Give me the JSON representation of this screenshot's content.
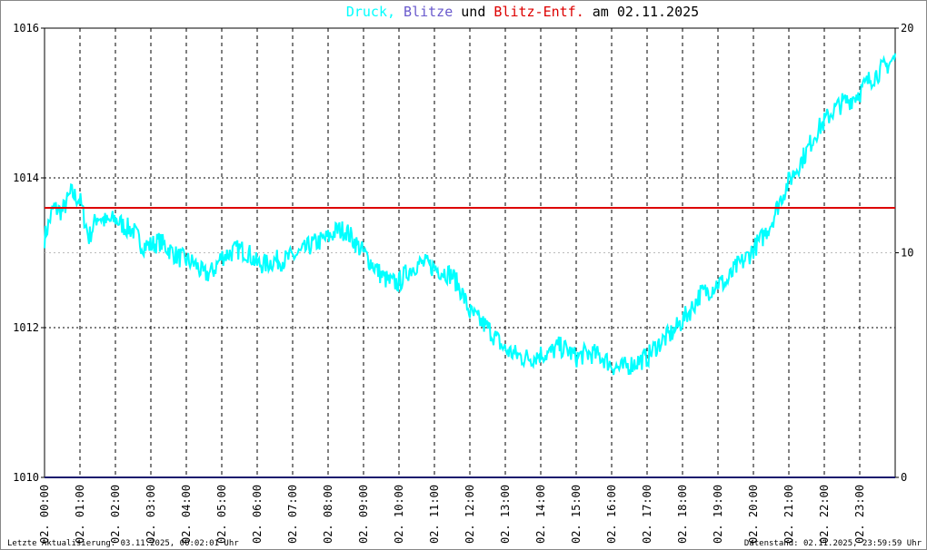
{
  "title": {
    "part1": "Druck,",
    "part2": "Blitze",
    "part3": "und",
    "part4": "Blitz-Entf.",
    "part5": "am 02.11.2025",
    "color1": "#00ffff",
    "color2": "#6a5acd",
    "color3": "#000000",
    "color4": "#dd0000",
    "color5": "#000000"
  },
  "footer": {
    "left": "Letzte Aktualisierung: 03.11.2025, 00:02:01 Uhr",
    "right": "Datenstand: 02.11.2025, 23:59:59 Uhr"
  },
  "chart_data": {
    "type": "line",
    "x_range_hours": [
      0,
      24
    ],
    "x_tick_labels": [
      "02. 00:00",
      "02. 01:00",
      "02. 02:00",
      "02. 03:00",
      "02. 04:00",
      "02. 05:00",
      "02. 06:00",
      "02. 07:00",
      "02. 08:00",
      "02. 09:00",
      "02. 10:00",
      "02. 11:00",
      "02. 12:00",
      "02. 13:00",
      "02. 14:00",
      "02. 15:00",
      "02. 16:00",
      "02. 17:00",
      "02. 18:00",
      "02. 19:00",
      "02. 20:00",
      "02. 21:00",
      "02. 22:00",
      "02. 23:00"
    ],
    "y_left": {
      "range": [
        1010,
        1016
      ],
      "ticks": [
        "1010",
        "1012",
        "1014",
        "1016"
      ]
    },
    "y_right": {
      "range": [
        0,
        20
      ],
      "ticks": [
        "0",
        "10",
        "20"
      ]
    },
    "grid": true,
    "series": [
      {
        "name": "Druck",
        "color": "#00ffff",
        "axis": "left",
        "x": [
          0,
          0.25,
          0.5,
          0.75,
          1.0,
          1.25,
          1.5,
          1.75,
          2.0,
          2.25,
          2.5,
          2.75,
          3.0,
          3.25,
          3.5,
          3.75,
          4.0,
          4.25,
          4.5,
          4.75,
          5.0,
          5.25,
          5.5,
          5.75,
          6.0,
          6.25,
          6.5,
          6.75,
          7.0,
          7.25,
          7.5,
          7.75,
          8.0,
          8.25,
          8.5,
          8.75,
          9.0,
          9.25,
          9.5,
          9.75,
          10.0,
          10.25,
          10.5,
          10.75,
          11.0,
          11.25,
          11.5,
          11.75,
          12.0,
          12.25,
          12.5,
          12.75,
          13.0,
          13.25,
          13.5,
          13.75,
          14.0,
          14.25,
          14.5,
          14.75,
          15.0,
          15.25,
          15.5,
          15.75,
          16.0,
          16.25,
          16.5,
          16.75,
          17.0,
          17.25,
          17.5,
          17.75,
          18.0,
          18.25,
          18.5,
          18.75,
          19.0,
          19.25,
          19.5,
          19.75,
          20.0,
          20.25,
          20.5,
          20.75,
          21.0,
          21.25,
          21.5,
          21.75,
          22.0,
          22.25,
          22.5,
          22.75,
          23.0,
          23.25,
          23.5,
          23.75,
          24.0
        ],
        "y": [
          1013.2,
          1013.6,
          1013.55,
          1013.8,
          1013.7,
          1013.2,
          1013.5,
          1013.4,
          1013.45,
          1013.35,
          1013.3,
          1013.1,
          1013.1,
          1013.15,
          1013.05,
          1012.95,
          1012.9,
          1012.85,
          1012.7,
          1012.75,
          1012.95,
          1013.0,
          1013.05,
          1013.0,
          1012.85,
          1012.85,
          1012.9,
          1012.9,
          1012.95,
          1013.0,
          1013.1,
          1013.15,
          1013.2,
          1013.3,
          1013.3,
          1013.15,
          1013.0,
          1012.85,
          1012.7,
          1012.6,
          1012.6,
          1012.75,
          1012.85,
          1012.85,
          1012.8,
          1012.75,
          1012.7,
          1012.5,
          1012.2,
          1012.1,
          1012.0,
          1011.85,
          1011.7,
          1011.65,
          1011.6,
          1011.6,
          1011.65,
          1011.65,
          1011.75,
          1011.7,
          1011.6,
          1011.65,
          1011.65,
          1011.6,
          1011.5,
          1011.45,
          1011.5,
          1011.55,
          1011.6,
          1011.75,
          1011.85,
          1011.95,
          1012.1,
          1012.25,
          1012.45,
          1012.5,
          1012.6,
          1012.6,
          1012.8,
          1012.9,
          1013.05,
          1013.2,
          1013.4,
          1013.7,
          1013.95,
          1014.15,
          1014.35,
          1014.6,
          1014.75,
          1014.9,
          1015.0,
          1015.05,
          1015.15,
          1015.3,
          1015.4,
          1015.5,
          1015.6
        ]
      },
      {
        "name": "Blitz-Entf.",
        "color": "#dd0000",
        "axis": "right",
        "x": [
          0,
          24
        ],
        "y": [
          12,
          12
        ]
      },
      {
        "name": "Blitze",
        "color": "#1a1a6e",
        "axis": "right",
        "x": [
          0,
          24
        ],
        "y": [
          0,
          0
        ]
      }
    ]
  }
}
